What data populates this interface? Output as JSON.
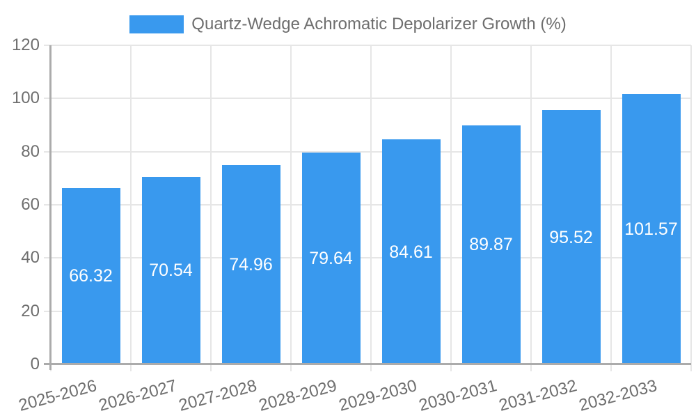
{
  "legend": {
    "label": "Quartz-Wedge Achromatic Depolarizer Growth (%)"
  },
  "chart_data": {
    "type": "bar",
    "title": "Quartz-Wedge Achromatic Depolarizer Growth (%)",
    "categories": [
      "2025-2026",
      "2026-2027",
      "2027-2028",
      "2028-2029",
      "2029-2030",
      "2030-2031",
      "2031-2032",
      "2032-2033"
    ],
    "values": [
      66.32,
      70.54,
      74.96,
      79.64,
      84.61,
      89.87,
      95.52,
      101.57
    ],
    "value_labels": [
      "66.32",
      "70.54",
      "74.96",
      "79.64",
      "84.61",
      "89.87",
      "95.52",
      "101.57"
    ],
    "yticks": [
      0,
      20,
      40,
      60,
      80,
      100,
      120
    ],
    "ylim": [
      0,
      120
    ],
    "xlabel": "",
    "ylabel": "",
    "grid": true,
    "legend_position": "top",
    "colors": {
      "bar": "#3999ee",
      "grid": "#e6e6e6",
      "axis": "#ababab",
      "tick_text": "#6e6e6e",
      "value_text": "#ffffff",
      "background": "#ffffff"
    }
  }
}
